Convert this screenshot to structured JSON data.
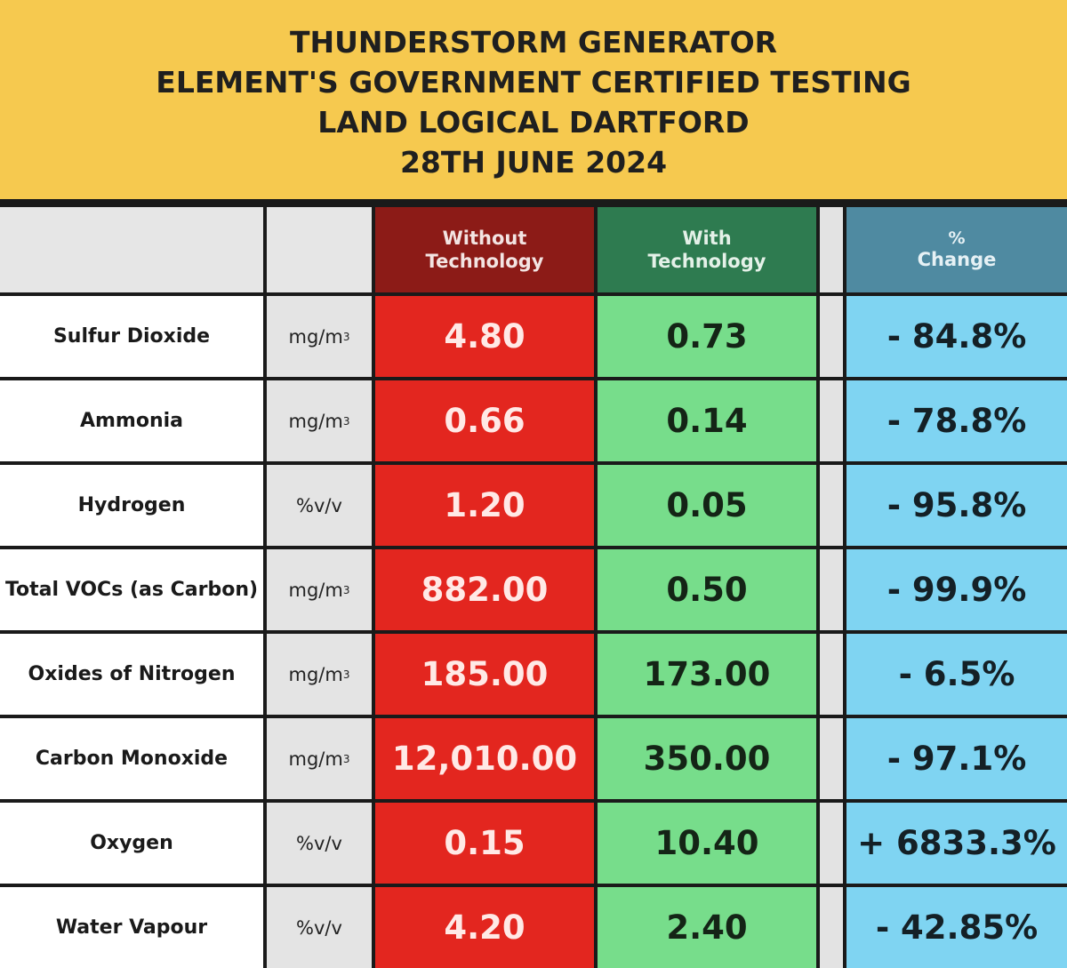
{
  "header": {
    "lines": [
      "THUNDERSTORM GENERATOR",
      "ELEMENT'S GOVERNMENT CERTIFIED TESTING",
      "LAND LOGICAL DARTFORD",
      "28TH JUNE 2024"
    ]
  },
  "columns": {
    "without_line1": "Without",
    "without_line2": "Technology",
    "with_line1": "With",
    "with_line2": "Technology",
    "change_line1": "%",
    "change_line2": "Change"
  },
  "rows": [
    {
      "name": "Sulfur Dioxide",
      "unit_base": "mg/m",
      "unit_sup": "3",
      "without": "4.80",
      "with": "0.73",
      "change": "- 84.8%"
    },
    {
      "name": "Ammonia",
      "unit_base": "mg/m",
      "unit_sup": "3",
      "without": "0.66",
      "with": "0.14",
      "change": "- 78.8%"
    },
    {
      "name": "Hydrogen",
      "unit_base": "%v/v",
      "unit_sup": "",
      "without": "1.20",
      "with": "0.05",
      "change": "- 95.8%"
    },
    {
      "name": "Total VOCs (as Carbon)",
      "unit_base": "mg/m",
      "unit_sup": "3",
      "without": "882.00",
      "with": "0.50",
      "change": "- 99.9%"
    },
    {
      "name": "Oxides of Nitrogen",
      "unit_base": "mg/m",
      "unit_sup": "3",
      "without": "185.00",
      "with": "173.00",
      "change": "- 6.5%"
    },
    {
      "name": "Carbon Monoxide",
      "unit_base": "mg/m",
      "unit_sup": "3",
      "without": "12,010.00",
      "with": "350.00",
      "change": "- 97.1%"
    },
    {
      "name": "Oxygen",
      "unit_base": "%v/v",
      "unit_sup": "",
      "without": "0.15",
      "with": "10.40",
      "change": "+ 6833.3%"
    },
    {
      "name": "Water Vapour",
      "unit_base": "%v/v",
      "unit_sup": "",
      "without": "4.20",
      "with": "2.40",
      "change": "- 42.85%"
    }
  ],
  "colors": {
    "header_bg": "#f6c94f",
    "without_header": "#8c1b17",
    "without_cell": "#e3261f",
    "with_header": "#2e7b50",
    "with_cell": "#77dd8b",
    "change_header": "#4f8aa1",
    "change_cell": "#7fd4f2"
  }
}
